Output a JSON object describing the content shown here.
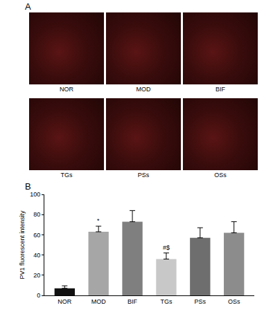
{
  "panel_a": {
    "label": "A",
    "images": [
      "NOR",
      "MOD",
      "BIF",
      "TGs",
      "PSs",
      "OSs"
    ]
  },
  "chart_data": {
    "type": "bar",
    "panel_label": "B",
    "categories": [
      "NOR",
      "MOD",
      "BIF",
      "TGs",
      "PSs",
      "OSs"
    ],
    "values": [
      7,
      63,
      73,
      36,
      57,
      62
    ],
    "errors": [
      2.5,
      5.5,
      11,
      6,
      10,
      11
    ],
    "colors": [
      "#111111",
      "#a6a6a6",
      "#7f7f7f",
      "#c8c8c8",
      "#6e6e6e",
      "#8c8c8c"
    ],
    "y_label": "PV1 fluorescent intensity",
    "ylim": [
      0,
      100
    ],
    "yticks": [
      0,
      20,
      40,
      60,
      80,
      100
    ],
    "grid": false,
    "annotations": [
      {
        "category": "MOD",
        "text": "*"
      },
      {
        "category": "TGs",
        "text": "#$"
      }
    ]
  }
}
